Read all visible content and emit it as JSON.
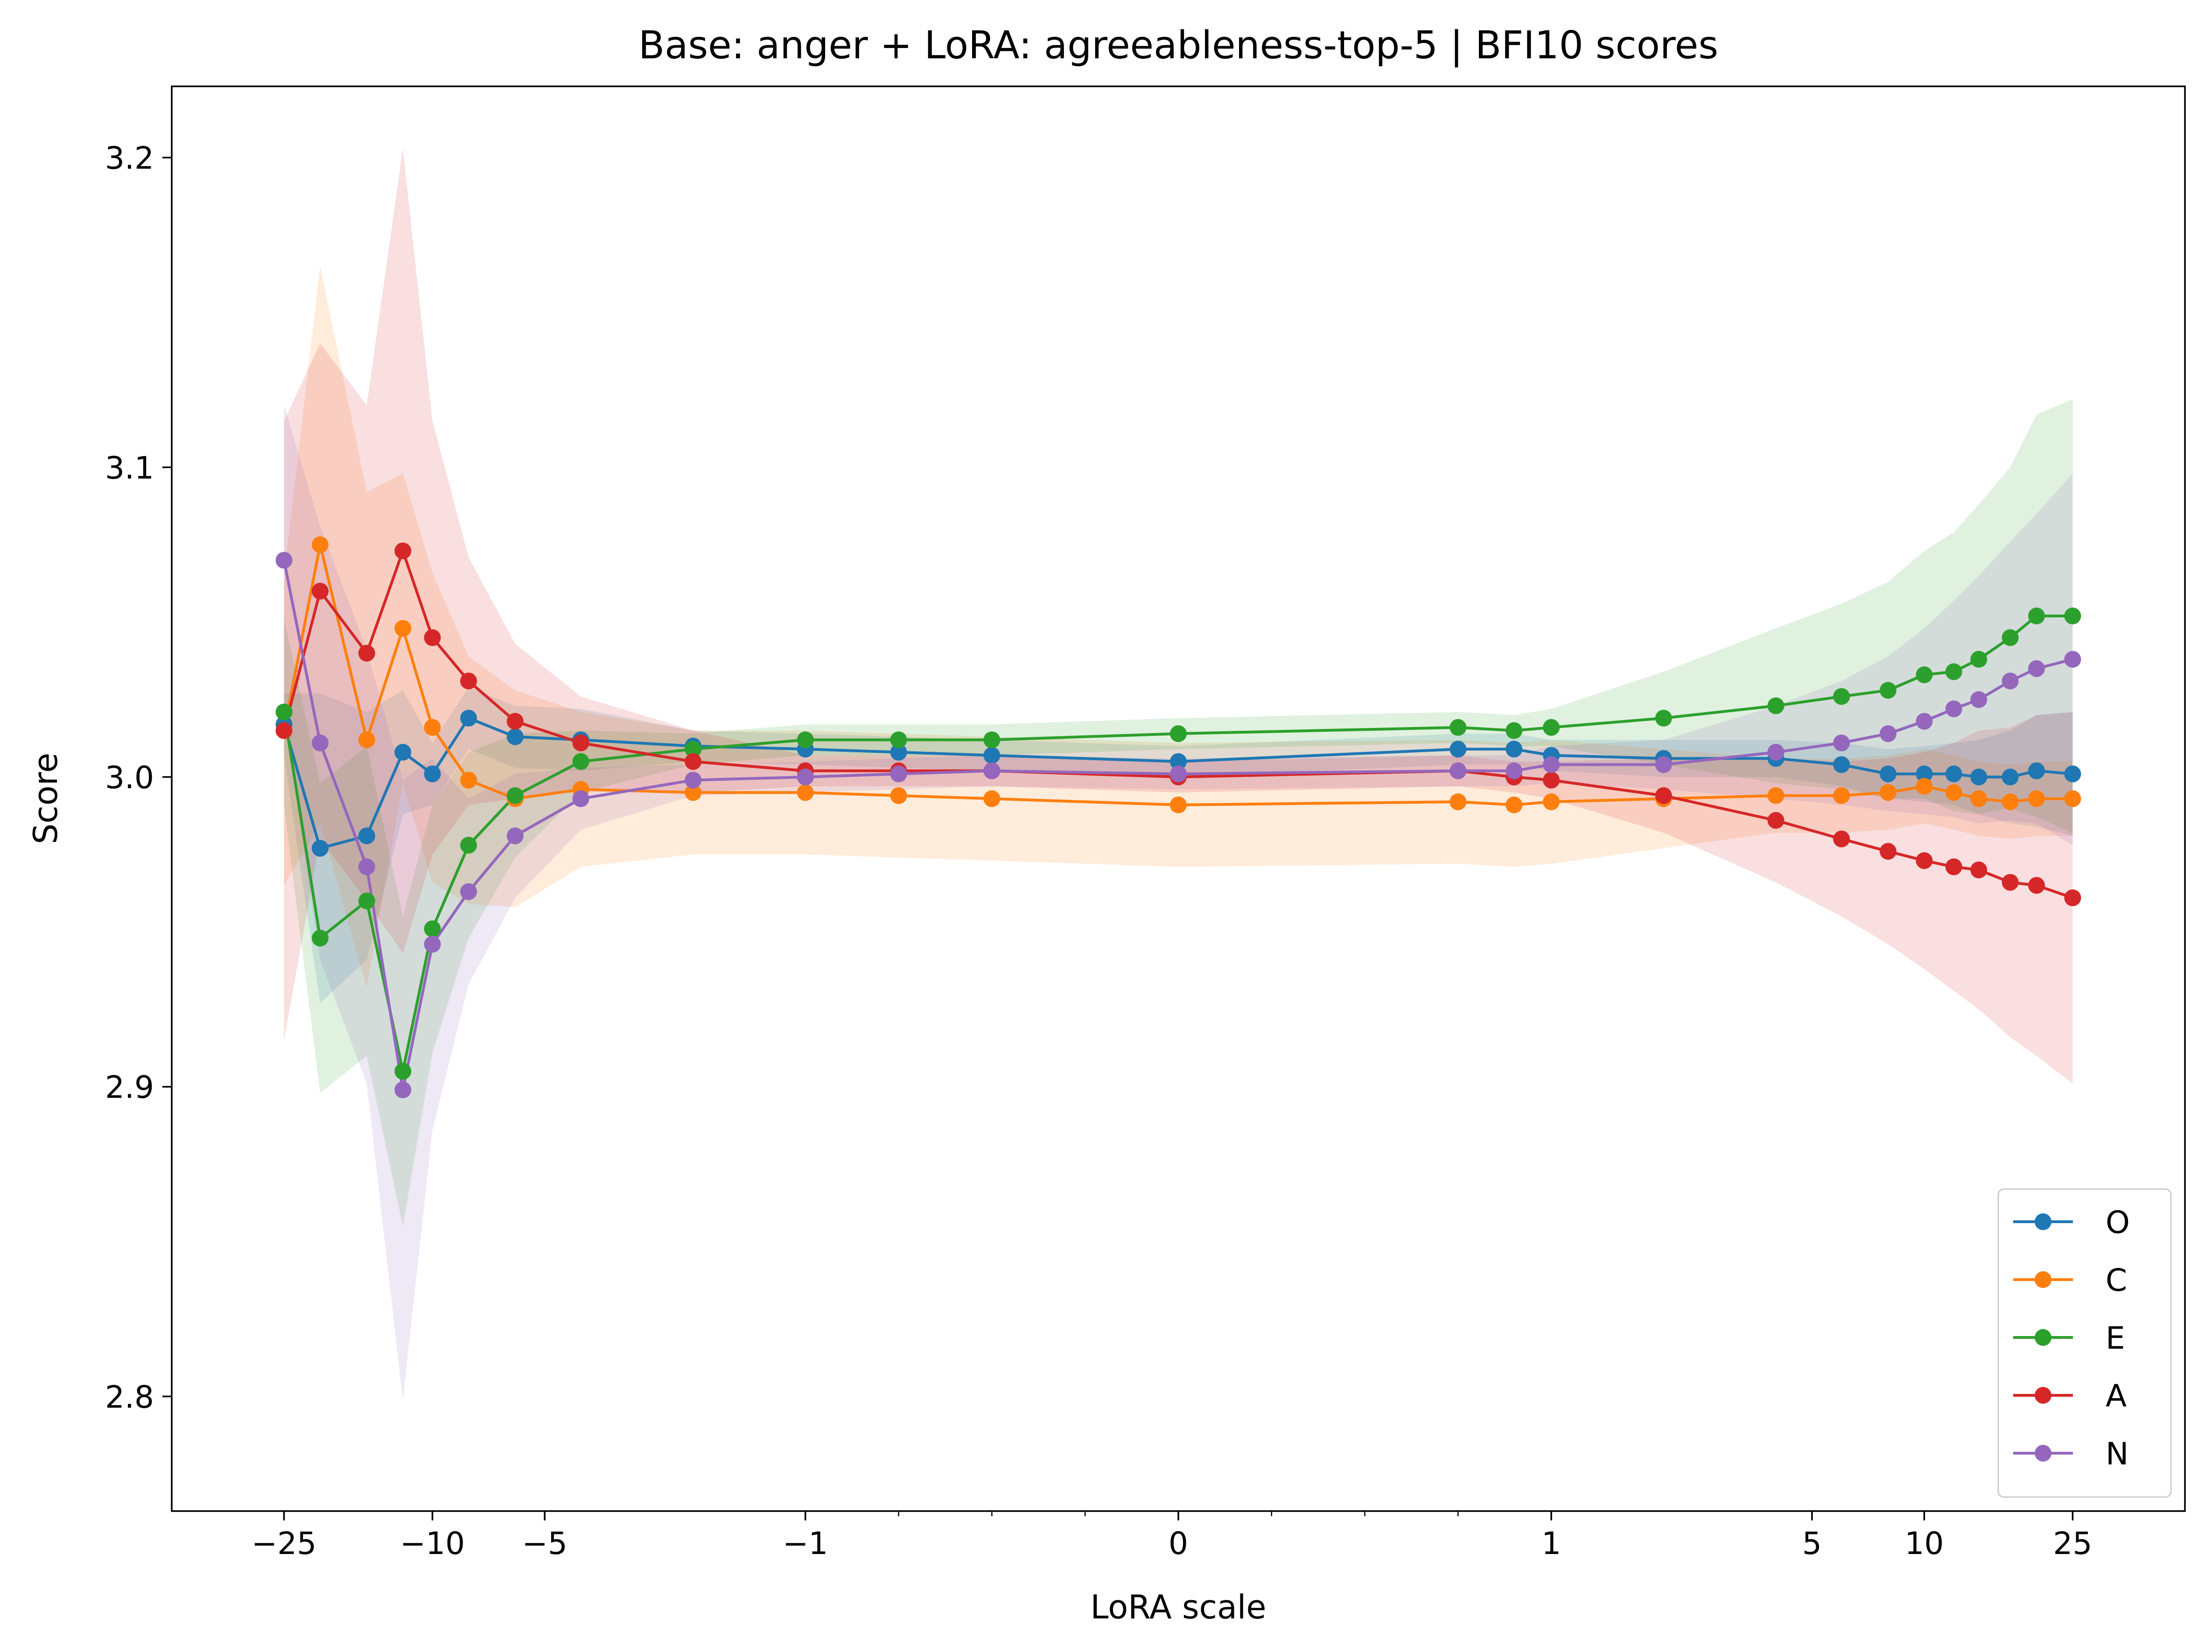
{
  "chart_data": {
    "type": "line",
    "title": "Base: anger + LoRA: agreeableness-top-5 | BFI10 scores",
    "xlabel": "LoRA scale",
    "ylabel": "Score",
    "x_scale": "symlog",
    "x_linthresh": 1,
    "xlim": [
      -50,
      50
    ],
    "ylim": [
      2.763,
      3.223
    ],
    "x_ticks": [
      {
        "value": -25,
        "label": "−25"
      },
      {
        "value": -10,
        "label": "−10"
      },
      {
        "value": -5,
        "label": "−5"
      },
      {
        "value": -1,
        "label": "−1"
      },
      {
        "value": 0,
        "label": "0"
      },
      {
        "value": 1,
        "label": "1"
      },
      {
        "value": 5,
        "label": "5"
      },
      {
        "value": 10,
        "label": "10"
      },
      {
        "value": 25,
        "label": "25"
      }
    ],
    "x_minor_ticks": [
      -0.75,
      -0.5,
      -0.25,
      0.25,
      0.5,
      0.75
    ],
    "y_ticks": [
      {
        "value": 2.8,
        "label": "2.8"
      },
      {
        "value": 2.9,
        "label": "2.9"
      },
      {
        "value": 3.0,
        "label": "3.0"
      },
      {
        "value": 3.1,
        "label": "3.1"
      },
      {
        "value": 3.2,
        "label": "3.2"
      }
    ],
    "grid": false,
    "legend_position": "lower-right",
    "x": [
      -25,
      -20,
      -15,
      -12,
      -10,
      -8,
      -6,
      -4,
      -2,
      -1,
      -0.75,
      -0.5,
      0,
      0.75,
      0.9,
      1,
      2,
      4,
      6,
      8,
      10,
      12,
      14,
      17,
      20,
      25
    ],
    "series": [
      {
        "name": "O",
        "color": "#1f77b4",
        "values": [
          3.017,
          2.977,
          2.981,
          3.008,
          3.001,
          3.019,
          3.013,
          3.012,
          3.01,
          3.009,
          3.008,
          3.007,
          3.005,
          3.009,
          3.009,
          3.007,
          3.006,
          3.006,
          3.004,
          3.001,
          3.001,
          3.001,
          3.0,
          3.0,
          3.002,
          3.001
        ],
        "band": [
          0.01,
          0.05,
          0.04,
          0.02,
          0.01,
          0.01,
          0.01,
          0.01,
          0.005,
          0.005,
          0.005,
          0.005,
          0.005,
          0.005,
          0.005,
          0.005,
          0.006,
          0.006,
          0.007,
          0.008,
          0.009,
          0.01,
          0.012,
          0.015,
          0.018,
          0.02
        ]
      },
      {
        "name": "C",
        "color": "#ff7f0e",
        "values": [
          3.015,
          3.075,
          3.012,
          3.048,
          3.016,
          2.999,
          2.993,
          2.996,
          2.995,
          2.995,
          2.994,
          2.993,
          2.991,
          2.992,
          2.991,
          2.992,
          2.993,
          2.994,
          2.994,
          2.995,
          2.997,
          2.995,
          2.993,
          2.992,
          2.993,
          2.993
        ],
        "band": [
          0.05,
          0.09,
          0.08,
          0.05,
          0.05,
          0.04,
          0.035,
          0.025,
          0.02,
          0.02,
          0.02,
          0.02,
          0.02,
          0.02,
          0.02,
          0.02,
          0.016,
          0.012,
          0.012,
          0.012,
          0.012,
          0.012,
          0.012,
          0.012,
          0.012,
          0.012
        ]
      },
      {
        "name": "E",
        "color": "#2ca02c",
        "values": [
          3.021,
          2.948,
          2.96,
          2.905,
          2.951,
          2.978,
          2.994,
          3.005,
          3.009,
          3.012,
          3.012,
          3.012,
          3.014,
          3.016,
          3.015,
          3.016,
          3.019,
          3.023,
          3.026,
          3.028,
          3.033,
          3.034,
          3.038,
          3.045,
          3.052,
          3.052
        ],
        "band": [
          0.03,
          0.05,
          0.05,
          0.05,
          0.04,
          0.03,
          0.02,
          0.01,
          0.005,
          0.005,
          0.005,
          0.005,
          0.005,
          0.005,
          0.005,
          0.006,
          0.015,
          0.025,
          0.03,
          0.035,
          0.04,
          0.045,
          0.05,
          0.055,
          0.065,
          0.07
        ]
      },
      {
        "name": "A",
        "color": "#d62728",
        "values": [
          3.015,
          3.06,
          3.04,
          3.073,
          3.045,
          3.031,
          3.018,
          3.011,
          3.005,
          3.002,
          3.002,
          3.002,
          3.0,
          3.002,
          3.0,
          2.999,
          2.994,
          2.986,
          2.98,
          2.976,
          2.973,
          2.971,
          2.97,
          2.966,
          2.965,
          2.961
        ],
        "band": [
          0.1,
          0.08,
          0.08,
          0.13,
          0.07,
          0.04,
          0.025,
          0.015,
          0.01,
          0.005,
          0.005,
          0.005,
          0.005,
          0.005,
          0.005,
          0.006,
          0.012,
          0.02,
          0.025,
          0.03,
          0.035,
          0.04,
          0.045,
          0.05,
          0.055,
          0.06
        ]
      },
      {
        "name": "N",
        "color": "#9467bd",
        "values": [
          3.07,
          3.011,
          2.971,
          2.899,
          2.946,
          2.963,
          2.981,
          2.993,
          2.999,
          3.0,
          3.001,
          3.002,
          3.001,
          3.002,
          3.002,
          3.004,
          3.004,
          3.008,
          3.011,
          3.014,
          3.018,
          3.022,
          3.025,
          3.031,
          3.035,
          3.038
        ],
        "band": [
          0.05,
          0.07,
          0.07,
          0.1,
          0.06,
          0.03,
          0.02,
          0.01,
          0.005,
          0.005,
          0.005,
          0.005,
          0.005,
          0.005,
          0.005,
          0.006,
          0.008,
          0.015,
          0.02,
          0.025,
          0.03,
          0.035,
          0.04,
          0.045,
          0.05,
          0.06
        ]
      }
    ]
  }
}
